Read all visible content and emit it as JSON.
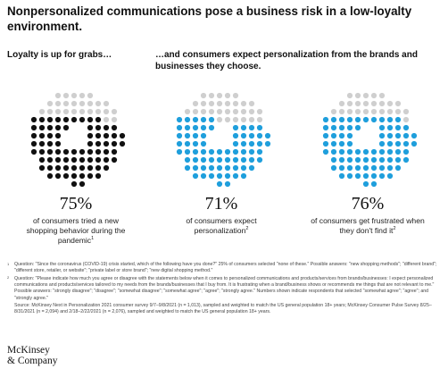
{
  "title": "Nonpersonalized communications pose a business risk in a low-loyalty environment.",
  "section_left": "Loyalty is up for grabs…",
  "section_right": "…and consumers expect personalization from the brands and businesses they choose.",
  "colors": {
    "black": "#111111",
    "blue": "#1f9fdc",
    "gray": "#cfcfcf"
  },
  "chart_data": [
    {
      "type": "dot-matrix",
      "value": 75,
      "value_label": "75%",
      "fill_color": "#111111",
      "empty_color": "#cfcfcf",
      "caption": "of consumers tried a new shopping behavior during the pandemic",
      "footnote_marker": "1"
    },
    {
      "type": "dot-matrix",
      "value": 71,
      "value_label": "71%",
      "fill_color": "#1f9fdc",
      "empty_color": "#cfcfcf",
      "caption": "of consumers expect personalization",
      "footnote_marker": "2"
    },
    {
      "type": "dot-matrix",
      "value": 76,
      "value_label": "76%",
      "fill_color": "#1f9fdc",
      "empty_color": "#cfcfcf",
      "caption": "of consumers get frustrated when they don't find it",
      "footnote_marker": "2"
    }
  ],
  "footnotes": [
    {
      "marker": "1",
      "text": "Question: \"Since the coronavirus (COVID-19) crisis started, which of the following have you done?\" 25% of consumers selected \"none of these.\" Possible answers: \"new shopping methods\"; \"different brand\"; \"different store, retailer, or website\"; \"private label or store brand\"; \"new digital shopping method.\""
    },
    {
      "marker": "2",
      "text": "Question: \"Please indicate how much you agree or disagree with the statements below when it comes to personalized communications and products/services from brands/businesses: I expect personalized communications and products/services tailored to my needs from the brands/businesses that I buy from. It is frustrating when a brand/business shows or recommends me things that are not relevant to me.\" Possible answers: \"strongly disagree\"; \"disagree\"; \"somewhat disagree\"; \"somewhat agree\"; \"agree\"; \"strongly agree.\" Numbers shown indicate respondents that selected \"somewhat agree\"; \"agree\"; and \"strongly agree.\""
    },
    {
      "marker": "",
      "text": "Source: McKinsey Next in Personalization 2021 consumer survey 9/7–9/8/2021 (n = 1,013), sampled and weighted to match the US general population 18+ years; McKinsey Consumer Pulse Survey 8/25–8/31/2021 (n = 2,094) and 2/18–2/22/2021 (n = 2,076), sampled and weighted to match the US general population 18+ years."
    }
  ],
  "logo": {
    "line1": "McKinsey",
    "line2": "& Company"
  }
}
